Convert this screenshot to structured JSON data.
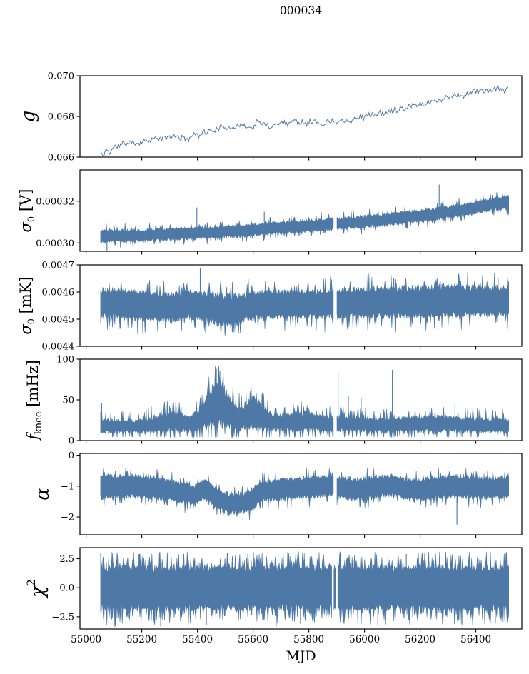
{
  "title": "000034",
  "accent_color": "#4e79a7",
  "axis_color": "#000000",
  "chart_data": {
    "type": "line",
    "title": "000034",
    "grid": false,
    "legend": null,
    "x": {
      "label": "MJD",
      "lim": [
        54978,
        56565
      ],
      "data_range": [
        55052,
        56518
      ],
      "ticks": [
        {
          "v": 55000,
          "label": "55000"
        },
        {
          "v": 55200,
          "label": "55200"
        },
        {
          "v": 55400,
          "label": "55400"
        },
        {
          "v": 55600,
          "label": "55600"
        },
        {
          "v": 55800,
          "label": "55800"
        },
        {
          "v": 56000,
          "label": "56000"
        },
        {
          "v": 56200,
          "label": "56200"
        },
        {
          "v": 56400,
          "label": "56400"
        }
      ]
    },
    "panels": [
      {
        "id": "g",
        "ylabel": [
          {
            "t": "g",
            "it": true
          }
        ],
        "ylim": [
          0.066,
          0.07
        ],
        "yticks": [
          {
            "v": 0.07,
            "label": "0.070"
          },
          {
            "v": 0.068,
            "label": "0.068"
          },
          {
            "v": 0.066,
            "label": "0.066"
          }
        ],
        "style": "line",
        "trend": [
          [
            55052,
            0.0663
          ],
          [
            55060,
            0.066
          ],
          [
            55072,
            0.0664
          ],
          [
            55085,
            0.0662
          ],
          [
            55100,
            0.0665
          ],
          [
            55125,
            0.0666
          ],
          [
            55150,
            0.0667
          ],
          [
            55180,
            0.0667
          ],
          [
            55210,
            0.0668
          ],
          [
            55240,
            0.0669
          ],
          [
            55270,
            0.0669
          ],
          [
            55300,
            0.067
          ],
          [
            55330,
            0.067
          ],
          [
            55360,
            0.0669
          ],
          [
            55390,
            0.0671
          ],
          [
            55420,
            0.0672
          ],
          [
            55450,
            0.0673
          ],
          [
            55480,
            0.0674
          ],
          [
            55510,
            0.0675
          ],
          [
            55540,
            0.0675
          ],
          [
            55565,
            0.0676
          ],
          [
            55590,
            0.0674
          ],
          [
            55615,
            0.0677
          ],
          [
            55640,
            0.0676
          ],
          [
            55665,
            0.0675
          ],
          [
            55695,
            0.0677
          ],
          [
            55725,
            0.0677
          ],
          [
            55755,
            0.0678
          ],
          [
            55785,
            0.0677
          ],
          [
            55815,
            0.0678
          ],
          [
            55845,
            0.0676
          ],
          [
            55875,
            0.0678
          ],
          [
            55905,
            0.0678
          ],
          [
            55935,
            0.0678
          ],
          [
            55965,
            0.0679
          ],
          [
            55995,
            0.068
          ],
          [
            56025,
            0.0681
          ],
          [
            56055,
            0.0681
          ],
          [
            56085,
            0.0682
          ],
          [
            56115,
            0.0684
          ],
          [
            56145,
            0.0684
          ],
          [
            56175,
            0.0686
          ],
          [
            56205,
            0.0686
          ],
          [
            56235,
            0.0687
          ],
          [
            56265,
            0.0688
          ],
          [
            56295,
            0.0689
          ],
          [
            56325,
            0.0691
          ],
          [
            56355,
            0.069
          ],
          [
            56385,
            0.0692
          ],
          [
            56415,
            0.0693
          ],
          [
            56445,
            0.0692
          ],
          [
            56475,
            0.0694
          ],
          [
            56505,
            0.0693
          ],
          [
            56518,
            0.0694
          ]
        ],
        "jitter": 0.00012,
        "spikes": [],
        "gaps": [],
        "clamp": [
          0.066,
          0.0697
        ],
        "seed": 11
      },
      {
        "id": "sigma0-V",
        "ylabel": [
          {
            "t": "σ",
            "it": true
          },
          {
            "t": "0",
            "sub": true
          },
          {
            "t": " [V]"
          }
        ],
        "ylim": [
          0.000296,
          0.000335
        ],
        "yticks": [
          {
            "v": 0.00032,
            "label": "0.00032"
          },
          {
            "v": 0.0003,
            "label": "0.00030"
          }
        ],
        "style": "band",
        "envelope": [
          [
            55052,
            0.0003,
            0.0003065
          ],
          [
            55150,
            0.0003003,
            0.0003068
          ],
          [
            55250,
            0.0003007,
            0.0003072
          ],
          [
            55350,
            0.0003012,
            0.0003077
          ],
          [
            55450,
            0.0003018,
            0.0003082
          ],
          [
            55550,
            0.0003025,
            0.000309
          ],
          [
            55650,
            0.0003035,
            0.00031
          ],
          [
            55750,
            0.0003045,
            0.000311
          ],
          [
            55850,
            0.0003055,
            0.000312
          ],
          [
            55950,
            0.0003065,
            0.000313
          ],
          [
            56050,
            0.0003075,
            0.000314
          ],
          [
            56150,
            0.000309,
            0.0003155
          ],
          [
            56250,
            0.0003105,
            0.000317
          ],
          [
            56350,
            0.0003125,
            0.000319
          ],
          [
            56450,
            0.000315,
            0.0003215
          ],
          [
            56518,
            0.000316,
            0.0003235
          ]
        ],
        "spikes": [
          [
            55075,
            0.0002955
          ],
          [
            55398,
            0.000317
          ],
          [
            55640,
            0.000315
          ],
          [
            56268,
            0.000328
          ]
        ],
        "gaps": [
          [
            55888,
            55901
          ]
        ],
        "edge_jitter": 0.22,
        "needle_prob": 0.1,
        "needle_frac": 0.5,
        "clamp": [
          0.000296,
          0.000334
        ],
        "seed": 22
      },
      {
        "id": "sigma0-mK",
        "ylabel": [
          {
            "t": "σ",
            "it": true
          },
          {
            "t": "0",
            "sub": true
          },
          {
            "t": " [mK]"
          }
        ],
        "ylim": [
          0.0044,
          0.0047
        ],
        "yticks": [
          {
            "v": 0.0047,
            "label": "0.0047"
          },
          {
            "v": 0.0046,
            "label": "0.0046"
          },
          {
            "v": 0.0045,
            "label": "0.0045"
          },
          {
            "v": 0.0044,
            "label": "0.0044"
          }
        ],
        "style": "band",
        "envelope": [
          [
            55052,
            0.0045,
            0.00462
          ],
          [
            55150,
            0.004495,
            0.004615
          ],
          [
            55250,
            0.004487,
            0.004605
          ],
          [
            55305,
            0.004482,
            0.0046
          ],
          [
            55360,
            0.004497,
            0.00461
          ],
          [
            55430,
            0.004492,
            0.004605
          ],
          [
            55480,
            0.004472,
            0.0046
          ],
          [
            55525,
            0.004467,
            0.004595
          ],
          [
            55575,
            0.00449,
            0.004602
          ],
          [
            55650,
            0.0045,
            0.00461
          ],
          [
            55750,
            0.0045,
            0.004608
          ],
          [
            55850,
            0.004497,
            0.004612
          ],
          [
            55950,
            0.0045,
            0.004617
          ],
          [
            56050,
            0.0045,
            0.004622
          ],
          [
            56150,
            0.004502,
            0.004626
          ],
          [
            56250,
            0.004505,
            0.00463
          ],
          [
            56350,
            0.004505,
            0.00463
          ],
          [
            56450,
            0.004505,
            0.004628
          ],
          [
            56518,
            0.004508,
            0.004625
          ]
        ],
        "spikes": [
          [
            55285,
            0.004468
          ],
          [
            55410,
            0.004688
          ],
          [
            55525,
            0.004452
          ],
          [
            55950,
            0.00464
          ],
          [
            56005,
            0.004643
          ],
          [
            56105,
            0.00465
          ],
          [
            56255,
            0.00464
          ],
          [
            56480,
            0.004652
          ]
        ],
        "gaps": [
          [
            55888,
            55901
          ]
        ],
        "edge_jitter": 0.2,
        "needle_prob": 0.12,
        "needle_frac": 0.45,
        "clamp": [
          0.00444,
          0.004695
        ],
        "seed": 33
      },
      {
        "id": "fknee",
        "ylabel": [
          {
            "t": "f",
            "it": true
          },
          {
            "t": "knee",
            "sub": true
          },
          {
            "t": " [mHz]"
          }
        ],
        "ylim": [
          0,
          100
        ],
        "yticks": [
          {
            "v": 100,
            "label": "100"
          },
          {
            "v": 50,
            "label": "50"
          },
          {
            "v": 0,
            "label": "0"
          }
        ],
        "style": "band",
        "envelope": [
          [
            55052,
            9,
            28
          ],
          [
            55120,
            9,
            26
          ],
          [
            55200,
            9,
            27
          ],
          [
            55270,
            10,
            32
          ],
          [
            55320,
            10,
            38
          ],
          [
            55370,
            10,
            32
          ],
          [
            55410,
            11,
            40
          ],
          [
            55440,
            12,
            62
          ],
          [
            55465,
            13,
            78
          ],
          [
            55492,
            13,
            72
          ],
          [
            55520,
            12,
            52
          ],
          [
            55550,
            11,
            40
          ],
          [
            55580,
            12,
            52
          ],
          [
            55608,
            12,
            58
          ],
          [
            55635,
            11,
            42
          ],
          [
            55680,
            10,
            33
          ],
          [
            55740,
            10,
            35
          ],
          [
            55800,
            10,
            36
          ],
          [
            55860,
            10,
            32
          ],
          [
            55920,
            10,
            30
          ],
          [
            55990,
            10,
            30
          ],
          [
            56060,
            9,
            28
          ],
          [
            56130,
            10,
            30
          ],
          [
            56200,
            10,
            31
          ],
          [
            56270,
            10,
            32
          ],
          [
            56340,
            10,
            30
          ],
          [
            56410,
            9,
            28
          ],
          [
            56470,
            9,
            29
          ],
          [
            56518,
            9,
            27
          ]
        ],
        "spikes": [
          [
            55056,
            46
          ],
          [
            55300,
            42
          ],
          [
            55468,
            88
          ],
          [
            55483,
            85
          ],
          [
            55905,
            82
          ],
          [
            55942,
            55
          ],
          [
            55988,
            52
          ],
          [
            56100,
            87
          ],
          [
            56325,
            46
          ]
        ],
        "gaps": [
          [
            55888,
            55901
          ]
        ],
        "edge_jitter": 0.25,
        "needle_prob": 0.18,
        "needle_frac": 0.7,
        "clamp": [
          4,
          92
        ],
        "seed": 44
      },
      {
        "id": "alpha",
        "ylabel": [
          {
            "t": "α",
            "it": true
          }
        ],
        "ylim": [
          -2.58,
          0.06
        ],
        "yticks": [
          {
            "v": 0,
            "label": "0"
          },
          {
            "v": -1,
            "label": "−1"
          },
          {
            "v": -2,
            "label": "−2"
          }
        ],
        "style": "band",
        "envelope": [
          [
            55052,
            -1.45,
            -0.62
          ],
          [
            55150,
            -1.4,
            -0.58
          ],
          [
            55250,
            -1.45,
            -0.65
          ],
          [
            55320,
            -1.55,
            -0.8
          ],
          [
            55385,
            -1.65,
            -0.95
          ],
          [
            55425,
            -1.45,
            -0.75
          ],
          [
            55465,
            -1.75,
            -1.0
          ],
          [
            55515,
            -1.95,
            -1.25
          ],
          [
            55565,
            -1.9,
            -1.2
          ],
          [
            55600,
            -1.8,
            -1.0
          ],
          [
            55630,
            -1.5,
            -0.8
          ],
          [
            55680,
            -1.5,
            -0.75
          ],
          [
            55750,
            -1.45,
            -0.7
          ],
          [
            55820,
            -1.4,
            -0.65
          ],
          [
            55880,
            -1.35,
            -0.6
          ],
          [
            55950,
            -1.5,
            -0.75
          ],
          [
            56020,
            -1.45,
            -0.65
          ],
          [
            56100,
            -1.35,
            -0.6
          ],
          [
            56170,
            -1.5,
            -0.75
          ],
          [
            56250,
            -1.45,
            -0.65
          ],
          [
            56330,
            -1.4,
            -0.6
          ],
          [
            56420,
            -1.45,
            -0.68
          ],
          [
            56518,
            -1.4,
            -0.65
          ]
        ],
        "spikes": [
          [
            56332,
            -2.25
          ]
        ],
        "gaps": [
          [
            55888,
            55901
          ]
        ],
        "edge_jitter": 0.2,
        "needle_prob": 0.12,
        "needle_frac": 0.4,
        "clamp": [
          -2.45,
          -0.42
        ],
        "seed": 55
      },
      {
        "id": "chi2",
        "ylabel": [
          {
            "t": "χ",
            "it": true
          },
          {
            "t": "2",
            "sup": true
          }
        ],
        "ylim": [
          -3.55,
          3.45
        ],
        "yticks": [
          {
            "v": 2.5,
            "label": "2.5"
          },
          {
            "v": 0.0,
            "label": "0.0"
          },
          {
            "v": -2.5,
            "label": "−2.5"
          }
        ],
        "style": "band",
        "envelope": [
          [
            55052,
            -2.0,
            1.95
          ],
          [
            56518,
            -2.0,
            1.95
          ]
        ],
        "spikes": [
          [
            55105,
            -3.3
          ],
          [
            55190,
            2.9
          ],
          [
            55268,
            -3.35
          ],
          [
            55432,
            -3.2
          ],
          [
            55600,
            2.95
          ],
          [
            55770,
            -3.1
          ],
          [
            56048,
            -3.3
          ],
          [
            56150,
            2.9
          ],
          [
            56352,
            -3.25
          ],
          [
            56470,
            -3.0
          ]
        ],
        "gaps": [
          [
            55882,
            55890
          ],
          [
            55897,
            55904
          ]
        ],
        "edge_jitter": 0.15,
        "needle_prob": 0.3,
        "needle_frac": 0.35,
        "clamp": [
          -3.45,
          3.1
        ],
        "seed": 66
      }
    ]
  }
}
